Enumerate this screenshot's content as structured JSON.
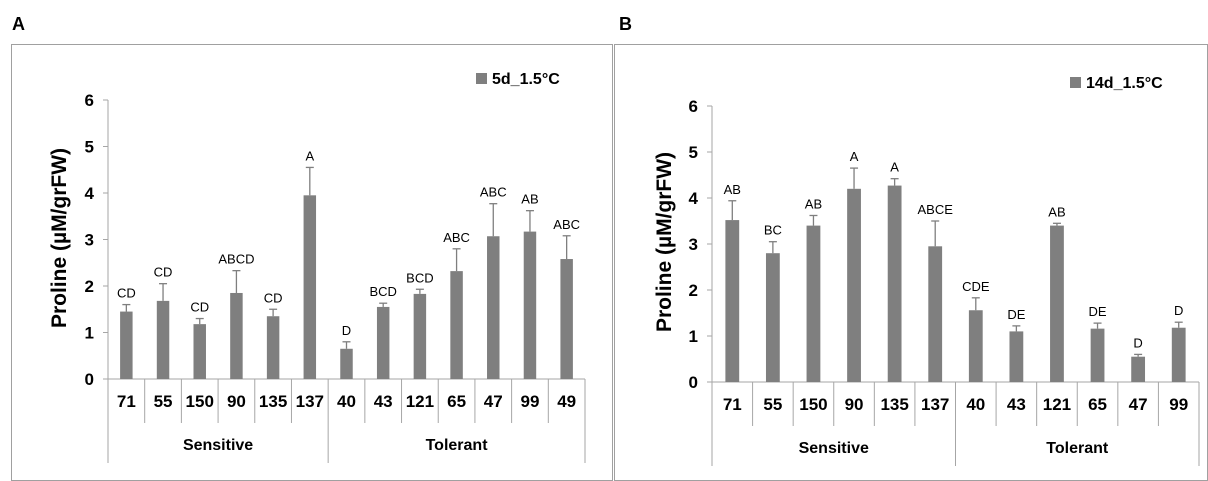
{
  "chart_data": [
    {
      "type": "bar",
      "panel_label": "A",
      "ylabel": "Proline (µM/grFW)",
      "ylim": [
        0,
        6
      ],
      "yticks": [
        "0",
        "1",
        "2",
        "3",
        "4",
        "5",
        "6"
      ],
      "categories": [
        "71",
        "55",
        "150",
        "90",
        "135",
        "137",
        "40",
        "43",
        "121",
        "65",
        "47",
        "99",
        "49"
      ],
      "groups": [
        {
          "name": "Sensitive",
          "count": 6
        },
        {
          "name": "Tolerant",
          "count": 7
        }
      ],
      "legend_position": "top-right",
      "series": [
        {
          "name": "5d_1.5°C",
          "color": "#7f7f7f",
          "values": [
            1.45,
            1.68,
            1.18,
            1.85,
            1.35,
            3.95,
            0.65,
            1.55,
            1.83,
            2.32,
            3.07,
            3.17,
            2.58
          ],
          "errors": [
            0.15,
            0.37,
            0.12,
            0.48,
            0.15,
            0.6,
            0.15,
            0.08,
            0.1,
            0.48,
            0.7,
            0.45,
            0.5
          ],
          "labels": [
            "CD",
            "CD",
            "CD",
            "ABCD",
            "CD",
            "A",
            "D",
            "BCD",
            "BCD",
            "ABC",
            "ABC",
            "AB",
            "ABC"
          ]
        }
      ]
    },
    {
      "type": "bar",
      "panel_label": "B",
      "ylabel": "Proline (µM/grFW)",
      "ylim": [
        0,
        6
      ],
      "yticks": [
        "0",
        "1",
        "2",
        "3",
        "4",
        "5",
        "6"
      ],
      "categories": [
        "71",
        "55",
        "150",
        "90",
        "135",
        "137",
        "40",
        "43",
        "121",
        "65",
        "47",
        "99"
      ],
      "groups": [
        {
          "name": "Sensitive",
          "count": 6
        },
        {
          "name": "Tolerant",
          "count": 6
        }
      ],
      "legend_position": "top-right",
      "series": [
        {
          "name": "14d_1.5°C",
          "color": "#7f7f7f",
          "values": [
            3.52,
            2.8,
            3.4,
            4.2,
            4.27,
            2.95,
            1.56,
            1.1,
            3.4,
            1.16,
            0.55,
            1.18
          ],
          "errors": [
            0.42,
            0.25,
            0.22,
            0.45,
            0.15,
            0.55,
            0.27,
            0.12,
            0.05,
            0.12,
            0.05,
            0.12
          ],
          "labels": [
            "AB",
            "BC",
            "AB",
            "A",
            "A",
            "ABCE",
            "CDE",
            "DE",
            "AB",
            "DE",
            "D",
            "D"
          ]
        }
      ]
    }
  ]
}
